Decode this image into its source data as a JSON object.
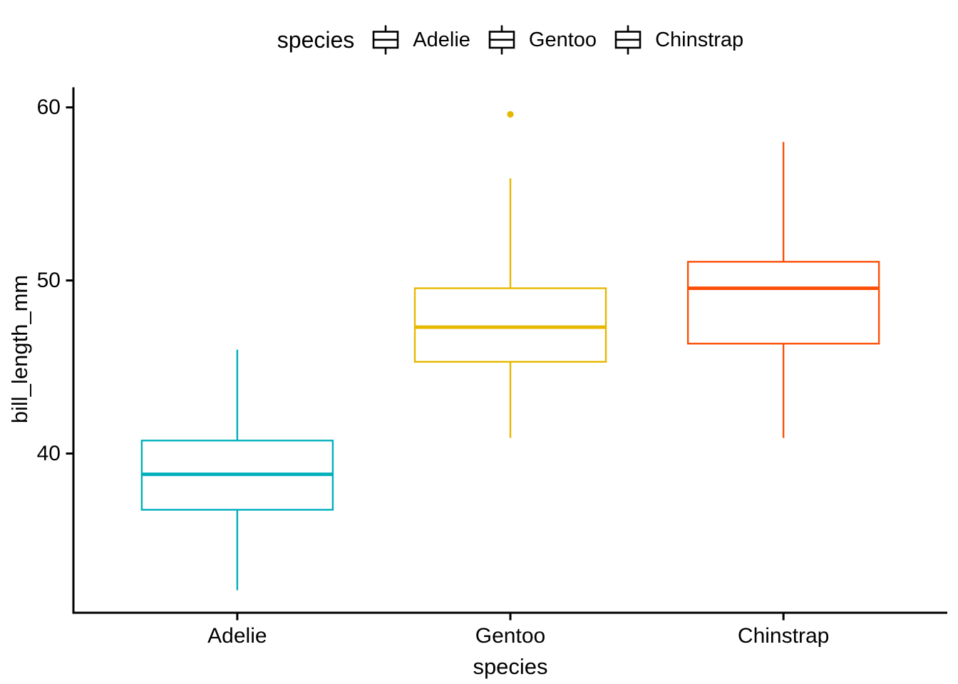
{
  "legend": {
    "title": "species",
    "items": [
      {
        "label": "Adelie",
        "color": "#00AFBB",
        "glyph": "boxplot-key-icon"
      },
      {
        "label": "Gentoo",
        "color": "#E7B800",
        "glyph": "boxplot-key-icon"
      },
      {
        "label": "Chinstrap",
        "color": "#FC4E07",
        "glyph": "boxplot-key-icon"
      }
    ]
  },
  "chart_data": {
    "type": "boxplot",
    "title": "",
    "xlabel": "species",
    "ylabel": "bill_length_mm",
    "categories": [
      "Adelie",
      "Gentoo",
      "Chinstrap"
    ],
    "yticks": [
      40,
      50,
      60
    ],
    "ylim": [
      30.8,
      61.1
    ],
    "grid": false,
    "legend_position": "top",
    "axis_color": "#000000",
    "text_color": "#000000",
    "series": [
      {
        "name": "Adelie",
        "color": "#00AFBB",
        "stats": {
          "whisker_low": 32.1,
          "q1": 36.75,
          "median": 38.8,
          "q3": 40.75,
          "whisker_high": 46.0
        },
        "outliers": []
      },
      {
        "name": "Gentoo",
        "color": "#E7B800",
        "stats": {
          "whisker_low": 40.9,
          "q1": 45.3,
          "median": 47.3,
          "q3": 49.55,
          "whisker_high": 55.9
        },
        "outliers": [
          59.6
        ]
      },
      {
        "name": "Chinstrap",
        "color": "#FC4E07",
        "stats": {
          "whisker_low": 40.9,
          "q1": 46.35,
          "median": 49.55,
          "q3": 51.08,
          "whisker_high": 58.0
        },
        "outliers": []
      }
    ]
  }
}
